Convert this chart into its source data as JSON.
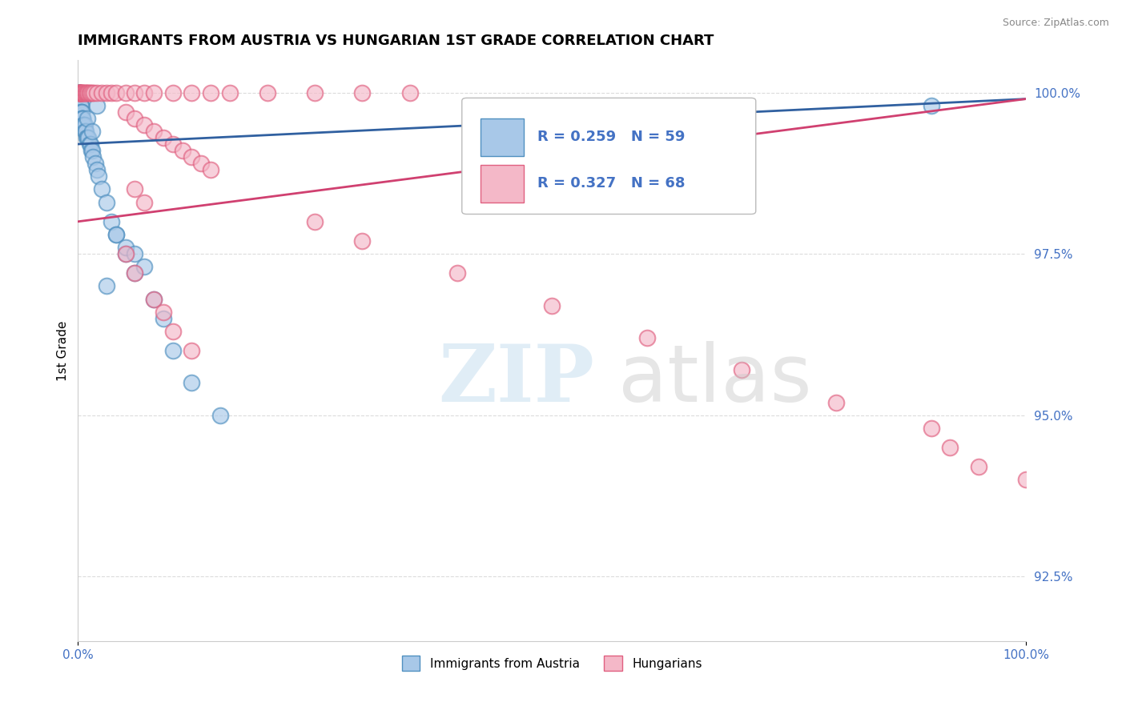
{
  "title": "IMMIGRANTS FROM AUSTRIA VS HUNGARIAN 1ST GRADE CORRELATION CHART",
  "source_text": "Source: ZipAtlas.com",
  "ylabel": "1st Grade",
  "xlim": [
    0.0,
    1.0
  ],
  "ylim": [
    0.915,
    1.005
  ],
  "yticks": [
    0.925,
    0.95,
    0.975,
    1.0
  ],
  "ytick_labels": [
    "92.5%",
    "95.0%",
    "97.5%",
    "100.0%"
  ],
  "xticks": [
    0.0,
    1.0
  ],
  "xtick_labels": [
    "0.0%",
    "100.0%"
  ],
  "legend_blue_r": "R = 0.259",
  "legend_blue_n": "N = 59",
  "legend_pink_r": "R = 0.327",
  "legend_pink_n": "N = 68",
  "legend_label_blue": "Immigrants from Austria",
  "legend_label_pink": "Hungarians",
  "blue_color": "#a8c8e8",
  "pink_color": "#f4b8c8",
  "blue_edge_color": "#5090c0",
  "pink_edge_color": "#e06080",
  "blue_line_color": "#3060a0",
  "pink_line_color": "#d04070",
  "blue_trend_start_y": 0.992,
  "blue_trend_end_y": 0.999,
  "pink_trend_start_y": 0.98,
  "pink_trend_end_y": 0.999,
  "blue_x": [
    0.001,
    0.001,
    0.001,
    0.001,
    0.001,
    0.001,
    0.001,
    0.001,
    0.002,
    0.002,
    0.002,
    0.002,
    0.002,
    0.003,
    0.003,
    0.003,
    0.003,
    0.004,
    0.004,
    0.004,
    0.005,
    0.005,
    0.005,
    0.006,
    0.006,
    0.007,
    0.007,
    0.008,
    0.009,
    0.01,
    0.011,
    0.012,
    0.013,
    0.014,
    0.015,
    0.016,
    0.018,
    0.02,
    0.022,
    0.025,
    0.03,
    0.035,
    0.04,
    0.05,
    0.06,
    0.08,
    0.09,
    0.1,
    0.12,
    0.15,
    0.03,
    0.04,
    0.05,
    0.06,
    0.07,
    0.01,
    0.015,
    0.9,
    0.02
  ],
  "blue_y": [
    1.0,
    1.0,
    1.0,
    1.0,
    1.0,
    1.0,
    0.999,
    0.999,
    0.999,
    0.999,
    0.999,
    0.999,
    0.998,
    0.998,
    0.998,
    0.998,
    0.997,
    0.997,
    0.997,
    0.996,
    0.996,
    0.996,
    0.996,
    0.995,
    0.995,
    0.995,
    0.994,
    0.994,
    0.993,
    0.993,
    0.993,
    0.992,
    0.992,
    0.991,
    0.991,
    0.99,
    0.989,
    0.988,
    0.987,
    0.985,
    0.983,
    0.98,
    0.978,
    0.975,
    0.972,
    0.968,
    0.965,
    0.96,
    0.955,
    0.95,
    0.97,
    0.978,
    0.976,
    0.975,
    0.973,
    0.996,
    0.994,
    0.998,
    0.998
  ],
  "pink_x": [
    0.001,
    0.001,
    0.001,
    0.001,
    0.002,
    0.002,
    0.003,
    0.003,
    0.004,
    0.004,
    0.005,
    0.006,
    0.006,
    0.007,
    0.008,
    0.009,
    0.01,
    0.011,
    0.012,
    0.013,
    0.015,
    0.017,
    0.02,
    0.025,
    0.03,
    0.035,
    0.04,
    0.05,
    0.06,
    0.07,
    0.08,
    0.1,
    0.12,
    0.14,
    0.16,
    0.2,
    0.25,
    0.3,
    0.35,
    0.05,
    0.06,
    0.07,
    0.08,
    0.09,
    0.1,
    0.11,
    0.12,
    0.13,
    0.14,
    0.06,
    0.07,
    0.25,
    0.3,
    0.4,
    0.5,
    0.6,
    0.7,
    0.8,
    0.9,
    0.92,
    0.95,
    1.0,
    0.05,
    0.06,
    0.08,
    0.09,
    0.1,
    0.12
  ],
  "pink_y": [
    1.0,
    1.0,
    1.0,
    1.0,
    1.0,
    1.0,
    1.0,
    1.0,
    1.0,
    1.0,
    1.0,
    1.0,
    1.0,
    1.0,
    1.0,
    1.0,
    1.0,
    1.0,
    1.0,
    1.0,
    1.0,
    1.0,
    1.0,
    1.0,
    1.0,
    1.0,
    1.0,
    1.0,
    1.0,
    1.0,
    1.0,
    1.0,
    1.0,
    1.0,
    1.0,
    1.0,
    1.0,
    1.0,
    1.0,
    0.997,
    0.996,
    0.995,
    0.994,
    0.993,
    0.992,
    0.991,
    0.99,
    0.989,
    0.988,
    0.985,
    0.983,
    0.98,
    0.977,
    0.972,
    0.967,
    0.962,
    0.957,
    0.952,
    0.948,
    0.945,
    0.942,
    0.94,
    0.975,
    0.972,
    0.968,
    0.966,
    0.963,
    0.96
  ]
}
